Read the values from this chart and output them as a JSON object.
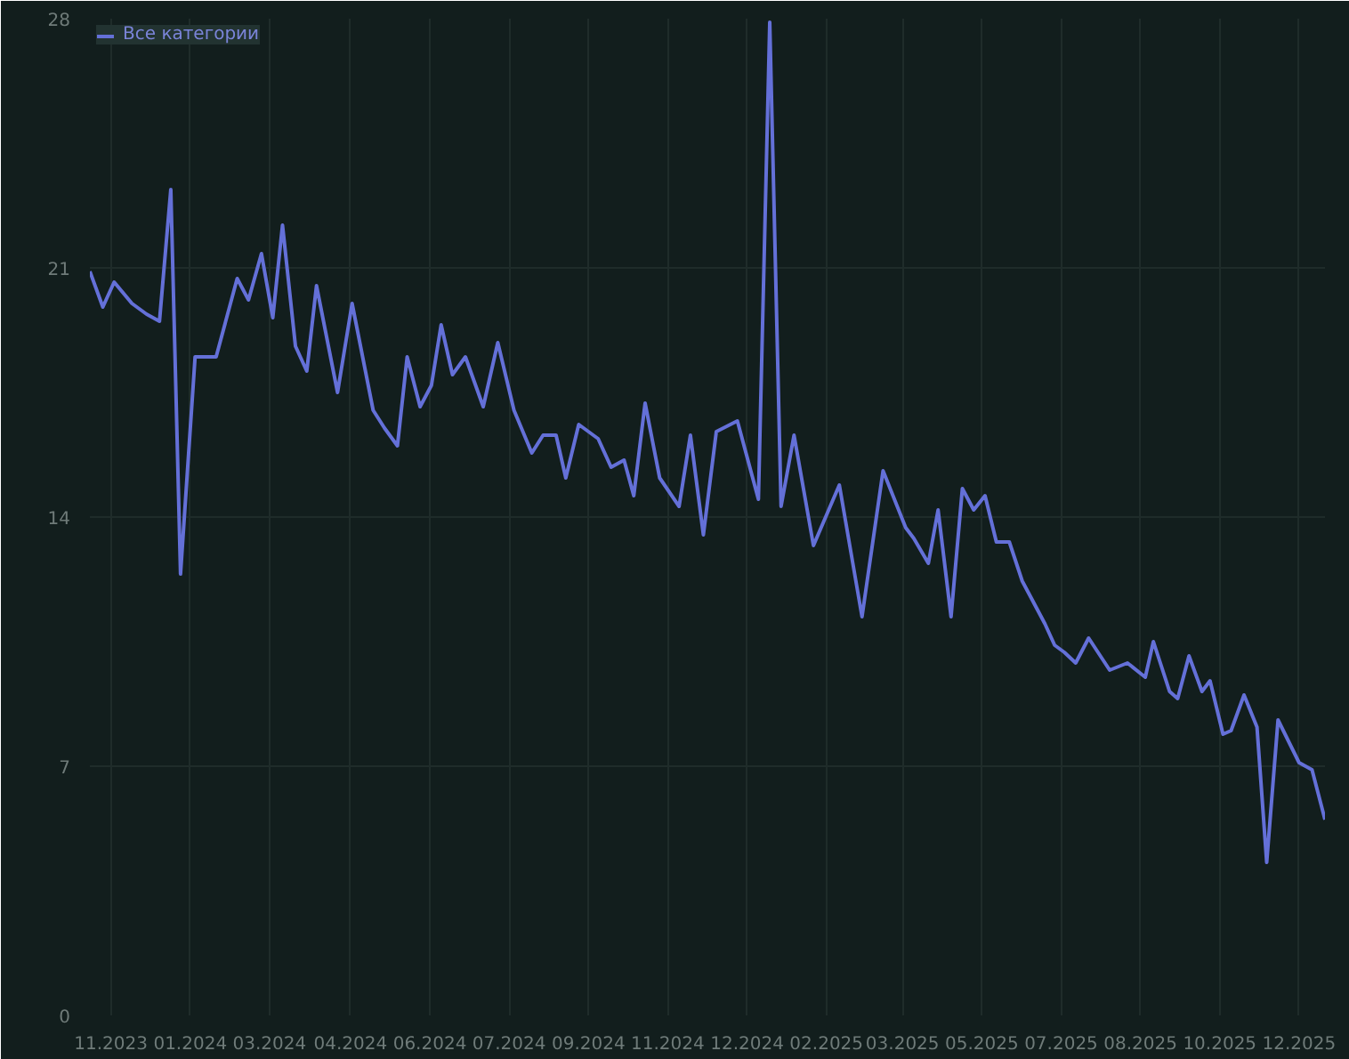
{
  "chart_data": {
    "type": "line",
    "x": [
      "2023-11-15",
      "2023-11-23",
      "2023-11-30",
      "2023-12-11",
      "2023-12-20",
      "2023-12-28",
      "2024-01-04",
      "2024-01-10",
      "2024-01-19",
      "2024-02-01",
      "2024-02-14",
      "2024-02-21",
      "2024-02-29",
      "2024-03-07",
      "2024-03-13",
      "2024-03-21",
      "2024-03-28",
      "2024-04-03",
      "2024-04-16",
      "2024-04-25",
      "2024-05-08",
      "2024-05-15",
      "2024-05-23",
      "2024-05-29",
      "2024-06-06",
      "2024-06-13",
      "2024-06-19",
      "2024-06-26",
      "2024-07-04",
      "2024-07-15",
      "2024-07-24",
      "2024-08-03",
      "2024-08-14",
      "2024-08-21",
      "2024-08-29",
      "2024-09-04",
      "2024-09-12",
      "2024-09-24",
      "2024-10-02",
      "2024-10-10",
      "2024-10-16",
      "2024-10-23",
      "2024-11-01",
      "2024-11-13",
      "2024-11-20",
      "2024-11-28",
      "2024-12-06",
      "2024-12-19",
      "2025-01-01",
      "2025-01-08",
      "2025-01-15",
      "2025-01-23",
      "2025-02-04",
      "2025-02-20",
      "2025-03-06",
      "2025-03-19",
      "2025-04-02",
      "2025-04-07",
      "2025-04-16",
      "2025-04-22",
      "2025-04-30",
      "2025-05-07",
      "2025-05-14",
      "2025-05-21",
      "2025-05-28",
      "2025-06-05",
      "2025-06-13",
      "2025-06-27",
      "2025-07-03",
      "2025-07-09",
      "2025-07-16",
      "2025-07-24",
      "2025-08-06",
      "2025-08-17",
      "2025-08-28",
      "2025-09-02",
      "2025-09-12",
      "2025-09-17",
      "2025-09-24",
      "2025-10-02",
      "2025-10-07",
      "2025-10-15",
      "2025-10-20",
      "2025-10-28",
      "2025-11-05",
      "2025-11-11",
      "2025-11-18",
      "2025-12-01",
      "2025-12-09",
      "2025-12-17"
    ],
    "series": [
      {
        "name": "Все категории",
        "color": "#6470d8",
        "values": [
          20.9,
          19.9,
          20.6,
          20.0,
          19.7,
          19.5,
          23.2,
          12.4,
          18.5,
          18.5,
          20.7,
          20.1,
          21.4,
          19.6,
          22.2,
          18.8,
          18.1,
          20.5,
          17.5,
          20.0,
          17.0,
          16.5,
          16.0,
          18.5,
          17.1,
          17.7,
          19.4,
          18.0,
          18.5,
          17.1,
          18.9,
          17.0,
          15.8,
          16.3,
          16.3,
          15.1,
          16.6,
          16.2,
          15.4,
          15.6,
          14.6,
          17.2,
          15.1,
          14.3,
          16.3,
          13.5,
          16.4,
          16.7,
          14.5,
          27.9,
          14.3,
          16.3,
          13.2,
          14.9,
          11.2,
          15.3,
          13.7,
          13.4,
          12.7,
          14.2,
          11.2,
          14.8,
          14.2,
          14.6,
          13.3,
          13.3,
          12.2,
          11.0,
          10.4,
          10.2,
          9.9,
          10.6,
          9.7,
          9.9,
          9.5,
          10.5,
          9.1,
          8.9,
          10.1,
          9.1,
          9.4,
          7.9,
          8.0,
          9.0,
          8.1,
          4.3,
          8.3,
          7.1,
          6.9,
          5.5
        ]
      }
    ],
    "xlim": [
      "2023-11-15",
      "2025-12-17"
    ],
    "xticks": [
      {
        "value": "2023-11-28",
        "label": "11.2023"
      },
      {
        "value": "2024-01-16",
        "label": "01.2024"
      },
      {
        "value": "2024-03-05",
        "label": "03.2024"
      },
      {
        "value": "2024-04-24",
        "label": "04.2024"
      },
      {
        "value": "2024-06-12",
        "label": "06.2024"
      },
      {
        "value": "2024-07-31",
        "label": "07.2024"
      },
      {
        "value": "2024-09-18",
        "label": "09.2024"
      },
      {
        "value": "2024-11-06",
        "label": "11.2024"
      },
      {
        "value": "2024-12-25",
        "label": "12.2024"
      },
      {
        "value": "2025-02-12",
        "label": "02.2025"
      },
      {
        "value": "2025-03-31",
        "label": "03.2025"
      },
      {
        "value": "2025-05-19",
        "label": "05.2025"
      },
      {
        "value": "2025-07-07",
        "label": "07.2025"
      },
      {
        "value": "2025-08-25",
        "label": "08.2025"
      },
      {
        "value": "2025-10-13",
        "label": "10.2025"
      },
      {
        "value": "2025-12-01",
        "label": "12.2025"
      }
    ],
    "ylim": [
      0,
      28
    ],
    "yticks": [
      0,
      7,
      14,
      21,
      28
    ],
    "grid": true,
    "legend": "top left",
    "marker": "none",
    "line_style": "solid"
  }
}
